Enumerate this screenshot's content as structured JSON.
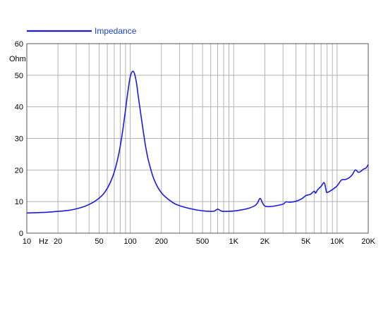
{
  "chart_data": {
    "type": "line",
    "x_scale": "log",
    "x_range": [
      10,
      20000
    ],
    "y_range": [
      0,
      60
    ],
    "grid": true,
    "legend_placement": "top-left",
    "ylabel": "Ohm",
    "x_unit_label": "Hz",
    "x_ticks": [
      {
        "value": 10,
        "label": "10"
      },
      {
        "value": 20,
        "label": "20"
      },
      {
        "value": 50,
        "label": "50"
      },
      {
        "value": 100,
        "label": "100"
      },
      {
        "value": 200,
        "label": "200"
      },
      {
        "value": 500,
        "label": "500"
      },
      {
        "value": 1000,
        "label": "1K"
      },
      {
        "value": 2000,
        "label": "2K"
      },
      {
        "value": 5000,
        "label": "5K"
      },
      {
        "value": 10000,
        "label": "10K"
      },
      {
        "value": 20000,
        "label": "20K"
      }
    ],
    "y_ticks": [
      0,
      10,
      20,
      30,
      40,
      50,
      60
    ],
    "series": [
      {
        "name": "Impedance",
        "color": "#1a1ae6",
        "points": [
          [
            10,
            6.4
          ],
          [
            15,
            6.6
          ],
          [
            20,
            6.9
          ],
          [
            25,
            7.2
          ],
          [
            30,
            7.7
          ],
          [
            35,
            8.3
          ],
          [
            40,
            9.1
          ],
          [
            45,
            10.0
          ],
          [
            50,
            11.1
          ],
          [
            55,
            12.4
          ],
          [
            60,
            14.2
          ],
          [
            65,
            16.5
          ],
          [
            70,
            19.3
          ],
          [
            75,
            23.0
          ],
          [
            80,
            27.5
          ],
          [
            85,
            33.0
          ],
          [
            90,
            39.0
          ],
          [
            95,
            45.0
          ],
          [
            100,
            49.5
          ],
          [
            105,
            51.2
          ],
          [
            110,
            50.5
          ],
          [
            115,
            47.5
          ],
          [
            120,
            43.0
          ],
          [
            130,
            35.0
          ],
          [
            140,
            28.0
          ],
          [
            150,
            23.0
          ],
          [
            170,
            17.0
          ],
          [
            200,
            12.8
          ],
          [
            250,
            10.0
          ],
          [
            300,
            8.7
          ],
          [
            400,
            7.6
          ],
          [
            500,
            7.1
          ],
          [
            600,
            6.9
          ],
          [
            650,
            7.0
          ],
          [
            700,
            7.6
          ],
          [
            750,
            7.1
          ],
          [
            800,
            6.9
          ],
          [
            1000,
            7.0
          ],
          [
            1200,
            7.4
          ],
          [
            1400,
            7.9
          ],
          [
            1600,
            8.7
          ],
          [
            1700,
            9.6
          ],
          [
            1800,
            11.0
          ],
          [
            1900,
            9.6
          ],
          [
            2000,
            8.6
          ],
          [
            2200,
            8.4
          ],
          [
            2500,
            8.6
          ],
          [
            3000,
            9.2
          ],
          [
            3200,
            9.9
          ],
          [
            3500,
            9.8
          ],
          [
            4000,
            10.1
          ],
          [
            4500,
            10.8
          ],
          [
            5000,
            11.9
          ],
          [
            5500,
            12.3
          ],
          [
            6000,
            13.3
          ],
          [
            6200,
            12.7
          ],
          [
            6500,
            13.8
          ],
          [
            7000,
            14.8
          ],
          [
            7500,
            16.0
          ],
          [
            7800,
            13.8
          ],
          [
            8000,
            12.9
          ],
          [
            9000,
            13.8
          ],
          [
            10000,
            15.0
          ],
          [
            11000,
            16.8
          ],
          [
            12000,
            17.0
          ],
          [
            13000,
            17.5
          ],
          [
            14000,
            18.5
          ],
          [
            15000,
            20.0
          ],
          [
            16000,
            19.3
          ],
          [
            17000,
            19.6
          ],
          [
            18000,
            20.3
          ],
          [
            19000,
            20.6
          ],
          [
            20000,
            21.7
          ]
        ]
      }
    ]
  }
}
